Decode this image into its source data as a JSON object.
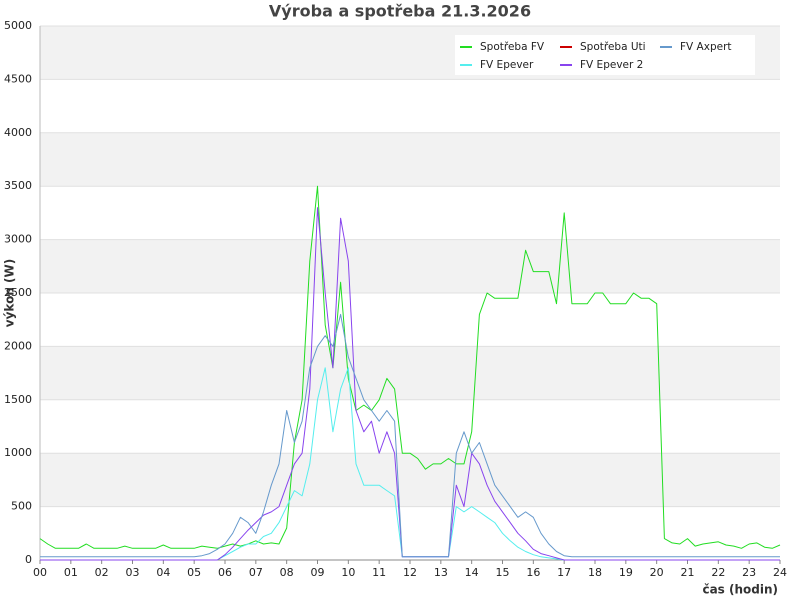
{
  "chart_data": {
    "type": "line",
    "title": "Výroba a spotřeba 21.3.2026",
    "x_label": "čas (hodin)",
    "y_label": "výkon (W)",
    "xlim": [
      0,
      24
    ],
    "ylim": [
      0,
      5000
    ],
    "xticks": [
      {
        "value": 0,
        "label": "00"
      },
      {
        "value": 1,
        "label": "01"
      },
      {
        "value": 2,
        "label": "02"
      },
      {
        "value": 3,
        "label": "03"
      },
      {
        "value": 4,
        "label": "04"
      },
      {
        "value": 5,
        "label": "05"
      },
      {
        "value": 6,
        "label": "06"
      },
      {
        "value": 7,
        "label": "07"
      },
      {
        "value": 8,
        "label": "08"
      },
      {
        "value": 9,
        "label": "09"
      },
      10,
      11,
      12,
      13,
      14,
      15,
      16,
      17,
      18,
      19,
      20,
      21,
      22,
      23,
      24
    ],
    "yticks": [
      0,
      500,
      1000,
      1500,
      2000,
      2500,
      3000,
      3500,
      4000,
      4500,
      5000
    ],
    "grid": true,
    "legend": "upper right",
    "x": [
      0,
      0.25,
      0.5,
      0.75,
      1,
      1.25,
      1.5,
      1.75,
      2,
      2.25,
      2.5,
      2.75,
      3,
      3.25,
      3.5,
      3.75,
      4,
      4.25,
      4.5,
      4.75,
      5,
      5.25,
      5.5,
      5.75,
      6,
      6.25,
      6.5,
      6.75,
      7,
      7.25,
      7.5,
      7.75,
      8,
      8.25,
      8.5,
      8.75,
      9,
      9.25,
      9.5,
      9.75,
      10,
      10.25,
      10.5,
      10.75,
      11,
      11.25,
      11.5,
      11.75,
      12,
      12.25,
      12.5,
      12.75,
      13,
      13.25,
      13.5,
      13.75,
      14,
      14.25,
      14.5,
      14.75,
      15,
      15.25,
      15.5,
      15.75,
      16,
      16.25,
      16.5,
      16.75,
      17,
      17.25,
      17.5,
      17.75,
      18,
      18.25,
      18.5,
      18.75,
      19,
      19.25,
      19.5,
      19.75,
      20,
      20.25,
      20.5,
      20.75,
      21,
      21.25,
      21.5,
      21.75,
      22,
      22.25,
      22.5,
      22.75,
      23,
      23.25,
      23.5,
      23.75,
      24
    ],
    "series": [
      {
        "name": "Spotřeba FV",
        "color": "#22dd22",
        "values": [
          200,
          150,
          110,
          110,
          110,
          110,
          150,
          110,
          110,
          110,
          110,
          130,
          110,
          110,
          110,
          110,
          140,
          110,
          110,
          110,
          110,
          130,
          120,
          110,
          130,
          150,
          130,
          150,
          180,
          150,
          160,
          150,
          300,
          1100,
          1500,
          2800,
          3500,
          2200,
          1800,
          2600,
          1700,
          1400,
          1450,
          1400,
          1500,
          1700,
          1600,
          1000,
          1000,
          950,
          850,
          900,
          900,
          950,
          900,
          900,
          1200,
          2300,
          2500,
          2450,
          2450,
          2450,
          2450,
          2900,
          2700,
          2700,
          2700,
          2400,
          3250,
          2400,
          2400,
          2400,
          2500,
          2500,
          2400,
          2400,
          2400,
          2500,
          2450,
          2450,
          2400,
          200,
          160,
          150,
          200,
          130,
          150,
          160,
          170,
          140,
          130,
          110,
          150,
          160,
          120,
          110,
          140
        ]
      },
      {
        "name": "FV Epever",
        "color": "#55eeee",
        "values": [
          0,
          0,
          0,
          0,
          0,
          0,
          0,
          0,
          0,
          0,
          0,
          0,
          0,
          0,
          0,
          0,
          0,
          0,
          0,
          0,
          0,
          0,
          0,
          0,
          40,
          80,
          120,
          150,
          150,
          220,
          250,
          350,
          500,
          650,
          600,
          900,
          1500,
          1800,
          1200,
          1600,
          1800,
          900,
          700,
          700,
          700,
          650,
          600,
          30,
          30,
          30,
          30,
          30,
          30,
          30,
          500,
          450,
          500,
          450,
          400,
          350,
          250,
          180,
          120,
          80,
          50,
          30,
          20,
          10,
          0,
          0,
          0,
          0,
          0,
          0,
          0,
          0,
          0,
          0,
          0,
          0,
          0,
          0,
          0,
          0,
          0,
          0,
          0,
          0,
          0,
          0,
          0,
          0,
          0,
          0,
          0,
          0,
          0
        ]
      },
      {
        "name": "Spotřeba Uti",
        "color": "#cc0000",
        "values": [
          null,
          null,
          null,
          null,
          null,
          null,
          null,
          null,
          null,
          null,
          null,
          null,
          null,
          null,
          null,
          null,
          null,
          null,
          null,
          null,
          null,
          null,
          null,
          null,
          null,
          null,
          null,
          null,
          null,
          null,
          null,
          null,
          null,
          null,
          null,
          null,
          null,
          null,
          null,
          null,
          null,
          null,
          null,
          null,
          null,
          null,
          null,
          null,
          null,
          null,
          null,
          null,
          null,
          null,
          null,
          null,
          null,
          null,
          null,
          null,
          null,
          null,
          null,
          null,
          null,
          null,
          null,
          null,
          null,
          null,
          null,
          null,
          null,
          null,
          null,
          null,
          null,
          null,
          null,
          null,
          null,
          null,
          null,
          null,
          null,
          null,
          null,
          null,
          null,
          null,
          null,
          null,
          null,
          null,
          null,
          null,
          null
        ]
      },
      {
        "name": "FV Epever 2",
        "color": "#8844ee",
        "values": [
          0,
          0,
          0,
          0,
          0,
          0,
          0,
          0,
          0,
          0,
          0,
          0,
          0,
          0,
          0,
          0,
          0,
          0,
          0,
          0,
          0,
          0,
          0,
          0,
          50,
          120,
          200,
          280,
          350,
          420,
          450,
          500,
          700,
          900,
          1000,
          1600,
          3300,
          2500,
          1800,
          3200,
          2800,
          1400,
          1200,
          1300,
          1000,
          1200,
          1000,
          30,
          30,
          30,
          30,
          30,
          30,
          30,
          700,
          500,
          1000,
          900,
          700,
          550,
          450,
          350,
          250,
          180,
          100,
          60,
          40,
          20,
          0,
          0,
          0,
          0,
          0,
          0,
          0,
          0,
          0,
          0,
          0,
          0,
          0,
          0,
          0,
          0,
          0,
          0,
          0,
          0,
          0,
          0,
          0,
          0,
          0,
          0,
          0,
          0,
          0
        ]
      },
      {
        "name": "FV Axpert",
        "color": "#6699cc",
        "values": [
          30,
          30,
          30,
          30,
          30,
          30,
          30,
          30,
          30,
          30,
          30,
          30,
          30,
          30,
          30,
          30,
          30,
          30,
          30,
          30,
          30,
          40,
          60,
          100,
          150,
          250,
          400,
          350,
          250,
          450,
          700,
          900,
          1400,
          1100,
          1300,
          1800,
          2000,
          2100,
          2000,
          2300,
          1900,
          1700,
          1500,
          1400,
          1300,
          1400,
          1300,
          30,
          30,
          30,
          30,
          30,
          30,
          30,
          1000,
          1200,
          1000,
          1100,
          900,
          700,
          600,
          500,
          400,
          450,
          400,
          250,
          150,
          80,
          40,
          30,
          30,
          30,
          30,
          30,
          30,
          30,
          30,
          30,
          30,
          30,
          30,
          30,
          30,
          30,
          30,
          30,
          30,
          30,
          30,
          30,
          30,
          30,
          30,
          30,
          30,
          30,
          30
        ]
      }
    ]
  }
}
